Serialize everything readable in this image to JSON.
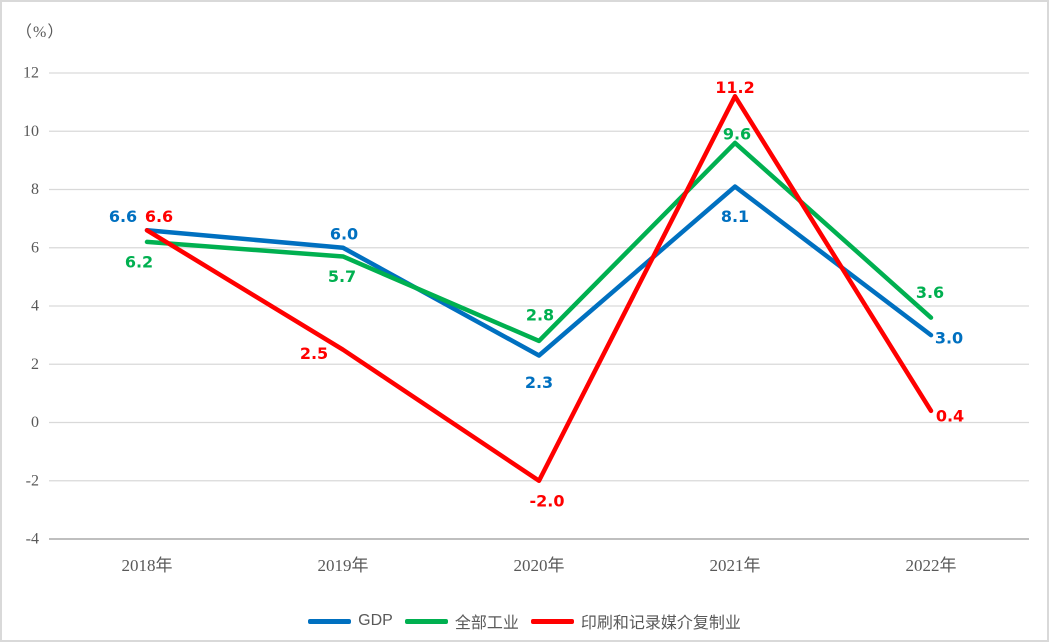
{
  "chart_data": {
    "type": "line",
    "title": "",
    "unit_label": "（%）",
    "xlabel": "",
    "ylabel": "（%）",
    "categories": [
      "2018年",
      "2019年",
      "2020年",
      "2021年",
      "2022年"
    ],
    "y_ticks": [
      12,
      10,
      8,
      6,
      4,
      2,
      0,
      -2,
      -4
    ],
    "ylim": [
      -4,
      12
    ],
    "grid": true,
    "legend_position": "bottom",
    "series": [
      {
        "name": "GDP",
        "color": "#0070C0",
        "values": [
          6.6,
          6.0,
          2.3,
          8.1,
          3.0
        ],
        "labels": [
          "6.6",
          "6.0",
          "2.3",
          "8.1",
          "3.0"
        ],
        "label_offsets": [
          [
            -24,
            -14
          ],
          [
            1,
            -14
          ],
          [
            0,
            27
          ],
          [
            0,
            30
          ],
          [
            18,
            3
          ]
        ]
      },
      {
        "name": "全部工业",
        "color": "#00B050",
        "values": [
          6.2,
          5.7,
          2.8,
          9.6,
          3.6
        ],
        "labels": [
          "6.2",
          "5.7",
          "2.8",
          "9.6",
          "3.6"
        ],
        "label_offsets": [
          [
            -8,
            20
          ],
          [
            -1,
            20
          ],
          [
            1,
            -26
          ],
          [
            2,
            -9
          ],
          [
            -1,
            -25
          ]
        ]
      },
      {
        "name": "印刷和记录媒介复制业",
        "color": "#FF0000",
        "values": [
          6.6,
          2.5,
          -2.0,
          11.2,
          0.4
        ],
        "labels": [
          "6.6",
          "2.5",
          "-2.0",
          "11.2",
          "0.4"
        ],
        "label_offsets": [
          [
            12,
            -14
          ],
          [
            -29,
            4
          ],
          [
            8,
            20
          ],
          [
            0,
            -9
          ],
          [
            19,
            5
          ]
        ]
      }
    ],
    "colors": {
      "gridline": "#D9D9D9",
      "axis_line": "#BFBFBF",
      "axis_text": "#595959",
      "legend_text": "#595959",
      "frame_border": "#D9D9D9"
    }
  }
}
